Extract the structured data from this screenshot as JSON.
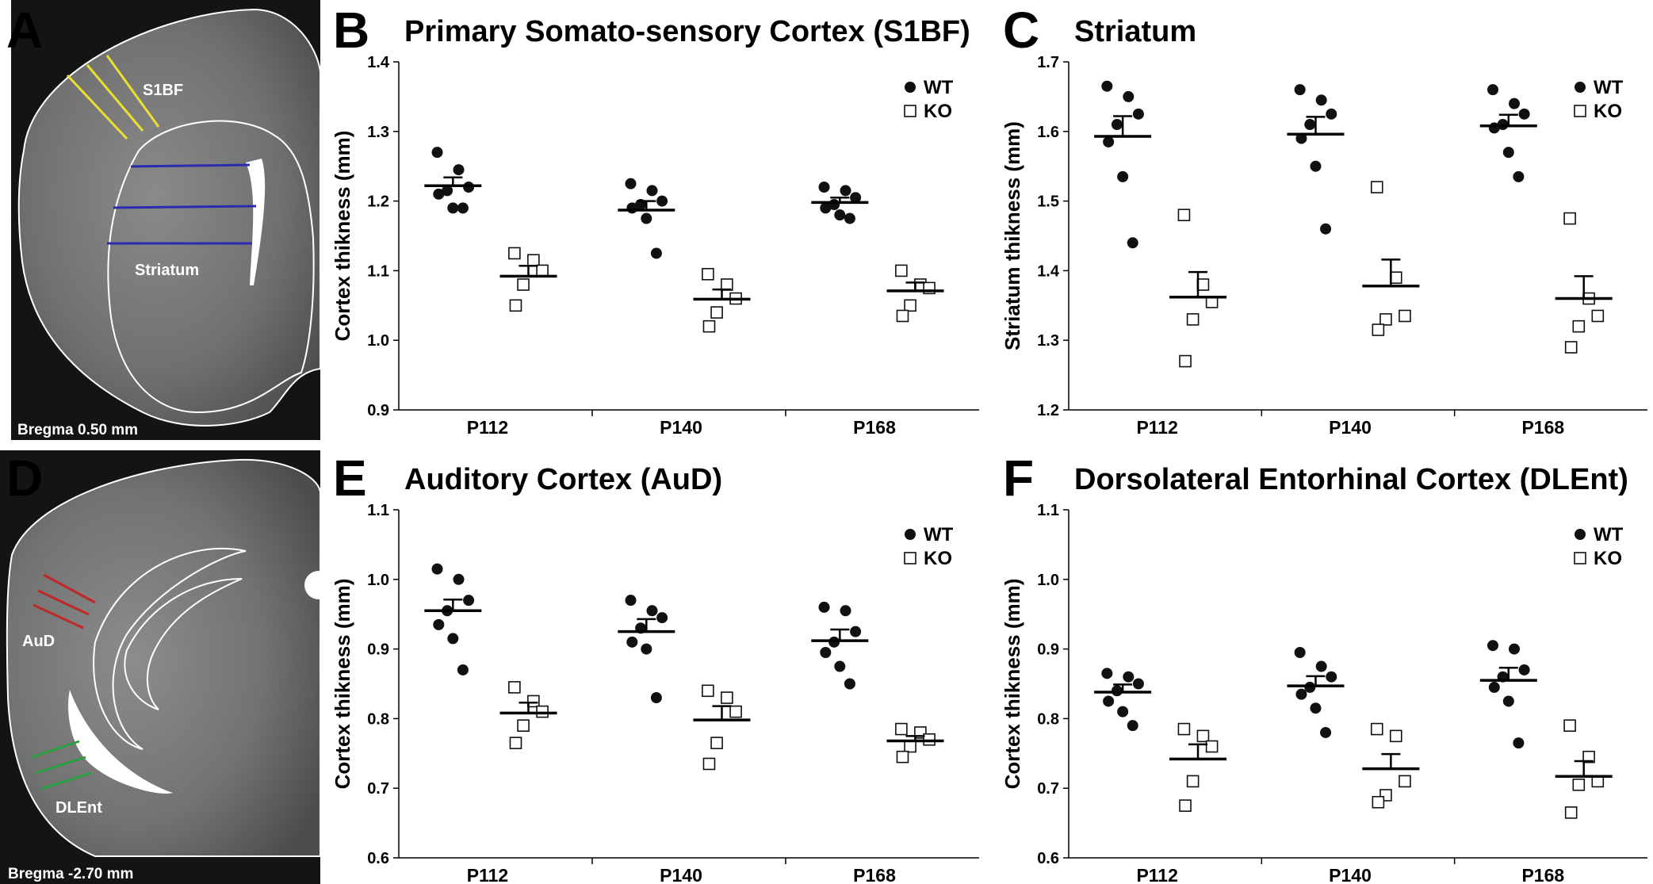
{
  "panels": [
    {
      "letter": "A"
    },
    {
      "letter": "B"
    },
    {
      "letter": "C"
    },
    {
      "letter": "D"
    },
    {
      "letter": "E"
    },
    {
      "letter": "F"
    }
  ],
  "brain_images": [
    {
      "id": "A",
      "region_labels": [
        "S1BF",
        "Striatum"
      ],
      "bregma": "Bregma 0.50 mm",
      "line_colors": {
        "s1bf": "#e8e030",
        "striatum": "#2b2bb0"
      }
    },
    {
      "id": "D",
      "region_labels": [
        "AuD",
        "DLEnt"
      ],
      "bregma": "Bregma -2.70 mm",
      "line_colors": {
        "aud": "#c02828",
        "dlent": "#28a040"
      }
    }
  ],
  "chart_data": [
    {
      "id": "B",
      "type": "scatter",
      "title": "Primary Somato-sensory Cortex (S1BF)",
      "ylabel": "Cortex thikness (mm)",
      "ylim": [
        0.9,
        1.4
      ],
      "yticks": [
        "0.9",
        "1.0",
        "1.1",
        "1.2",
        "1.3",
        "1.4"
      ],
      "categories": [
        "P112",
        "P140",
        "P168"
      ],
      "legend": [
        "WT",
        "KO"
      ],
      "series": [
        {
          "name": "WT",
          "marker": "filled-circle",
          "points": [
            [
              1.27,
              1.245,
              1.22,
              1.215,
              1.21,
              1.19,
              1.19
            ],
            [
              1.225,
              1.215,
              1.2,
              1.195,
              1.19,
              1.175,
              1.125
            ],
            [
              1.22,
              1.215,
              1.205,
              1.195,
              1.19,
              1.18,
              1.175
            ]
          ],
          "means": [
            1.222,
            1.187,
            1.198
          ],
          "sems": [
            0.012,
            0.013,
            0.007
          ]
        },
        {
          "name": "KO",
          "marker": "open-square",
          "points": [
            [
              1.125,
              1.115,
              1.1,
              1.08,
              1.05
            ],
            [
              1.095,
              1.08,
              1.06,
              1.04,
              1.02
            ],
            [
              1.1,
              1.08,
              1.075,
              1.05,
              1.035
            ]
          ],
          "means": [
            1.092,
            1.059,
            1.071
          ],
          "sems": [
            0.015,
            0.014,
            0.012
          ]
        }
      ]
    },
    {
      "id": "C",
      "type": "scatter",
      "title": "Striatum",
      "ylabel": "Striatum thikness (mm)",
      "ylim": [
        1.2,
        1.7
      ],
      "yticks": [
        "1.2",
        "1.3",
        "1.4",
        "1.5",
        "1.6",
        "1.7"
      ],
      "categories": [
        "P112",
        "P140",
        "P168"
      ],
      "legend": [
        "WT",
        "KO"
      ],
      "series": [
        {
          "name": "WT",
          "marker": "filled-circle",
          "points": [
            [
              1.665,
              1.65,
              1.625,
              1.61,
              1.585,
              1.535,
              1.44
            ],
            [
              1.66,
              1.645,
              1.625,
              1.61,
              1.59,
              1.55,
              1.46
            ],
            [
              1.66,
              1.64,
              1.625,
              1.61,
              1.605,
              1.57,
              1.535
            ]
          ],
          "means": [
            1.593,
            1.596,
            1.608
          ],
          "sems": [
            0.029,
            0.025,
            0.016
          ]
        },
        {
          "name": "KO",
          "marker": "open-square",
          "points": [
            [
              1.48,
              1.38,
              1.355,
              1.33,
              1.27
            ],
            [
              1.52,
              1.39,
              1.335,
              1.33,
              1.315
            ],
            [
              1.475,
              1.36,
              1.335,
              1.32,
              1.29
            ]
          ],
          "means": [
            1.362,
            1.378,
            1.36
          ],
          "sems": [
            0.036,
            0.038,
            0.032
          ]
        }
      ]
    },
    {
      "id": "E",
      "type": "scatter",
      "title": "Auditory Cortex (AuD)",
      "ylabel": "Cortex thikness (mm)",
      "ylim": [
        0.6,
        1.1
      ],
      "yticks": [
        "0.6",
        "0.7",
        "0.8",
        "0.9",
        "1.0",
        "1.1"
      ],
      "categories": [
        "P112",
        "P140",
        "P168"
      ],
      "legend": [
        "WT",
        "KO"
      ],
      "series": [
        {
          "name": "WT",
          "marker": "filled-circle",
          "points": [
            [
              1.015,
              1.0,
              0.97,
              0.955,
              0.935,
              0.915,
              0.87
            ],
            [
              0.97,
              0.955,
              0.945,
              0.93,
              0.91,
              0.9,
              0.83
            ],
            [
              0.96,
              0.955,
              0.925,
              0.91,
              0.895,
              0.875,
              0.85
            ]
          ],
          "means": [
            0.955,
            0.925,
            0.912
          ],
          "sems": [
            0.016,
            0.018,
            0.016
          ]
        },
        {
          "name": "KO",
          "marker": "open-square",
          "points": [
            [
              0.845,
              0.825,
              0.81,
              0.79,
              0.765
            ],
            [
              0.84,
              0.83,
              0.81,
              0.765,
              0.735
            ],
            [
              0.785,
              0.78,
              0.77,
              0.76,
              0.745
            ]
          ],
          "means": [
            0.808,
            0.798,
            0.768
          ],
          "sems": [
            0.015,
            0.02,
            0.007
          ]
        }
      ]
    },
    {
      "id": "F",
      "type": "scatter",
      "title": "Dorsolateral Entorhinal Cortex (DLEnt)",
      "ylabel": "Cortex thikness (mm)",
      "ylim": [
        0.6,
        1.1
      ],
      "yticks": [
        "0.6",
        "0.7",
        "0.8",
        "0.9",
        "1.0",
        "1.1"
      ],
      "categories": [
        "P112",
        "P140",
        "P168"
      ],
      "legend": [
        "WT",
        "KO"
      ],
      "series": [
        {
          "name": "WT",
          "marker": "filled-circle",
          "points": [
            [
              0.865,
              0.86,
              0.85,
              0.84,
              0.825,
              0.81,
              0.79
            ],
            [
              0.895,
              0.875,
              0.86,
              0.845,
              0.835,
              0.815,
              0.78
            ],
            [
              0.905,
              0.9,
              0.87,
              0.86,
              0.845,
              0.825,
              0.765
            ]
          ],
          "means": [
            0.838,
            0.847,
            0.855
          ],
          "sems": [
            0.011,
            0.014,
            0.018
          ]
        },
        {
          "name": "KO",
          "marker": "open-square",
          "points": [
            [
              0.785,
              0.775,
              0.76,
              0.71,
              0.675
            ],
            [
              0.785,
              0.775,
              0.71,
              0.69,
              0.68
            ],
            [
              0.79,
              0.745,
              0.71,
              0.705,
              0.665
            ]
          ],
          "means": [
            0.742,
            0.728,
            0.717
          ],
          "sems": [
            0.021,
            0.021,
            0.022
          ]
        }
      ]
    }
  ]
}
